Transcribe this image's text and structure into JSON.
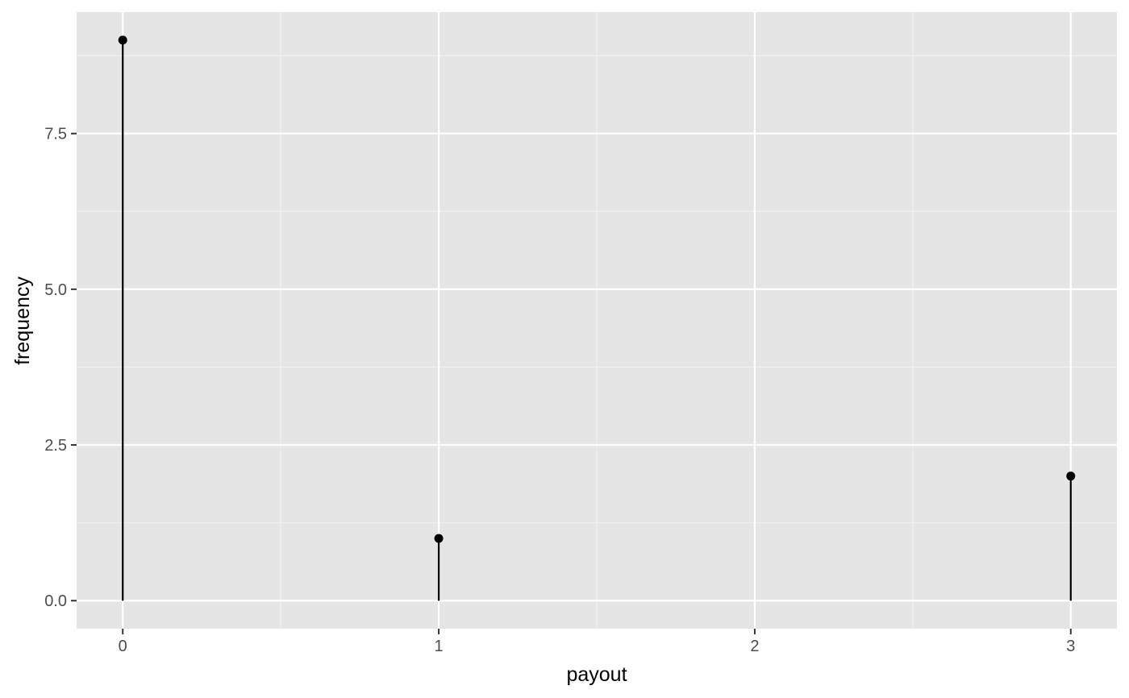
{
  "chart_data": {
    "type": "lollipop",
    "title": "",
    "xlabel": "payout",
    "ylabel": "frequency",
    "x": [
      0,
      1,
      3
    ],
    "y": [
      9,
      1,
      2
    ],
    "xlim": [
      -0.146,
      3.146
    ],
    "ylim": [
      -0.45,
      9.45
    ],
    "x_ticks": [
      0,
      1,
      2,
      3
    ],
    "x_tick_labels": [
      "0",
      "1",
      "2",
      "3"
    ],
    "y_ticks": [
      0,
      2.5,
      5,
      7.5
    ],
    "y_tick_labels": [
      "0.0",
      "2.5",
      "5.0",
      "7.5"
    ],
    "grid": true,
    "legend": "none"
  },
  "colors": {
    "panel_background": "#e5e5e5",
    "grid_major": "#ffffff",
    "grid_minor": "#f2f2f2",
    "marks": "#000000",
    "tick_text": "#4d4d4d",
    "axis_ticks": "#333333"
  }
}
